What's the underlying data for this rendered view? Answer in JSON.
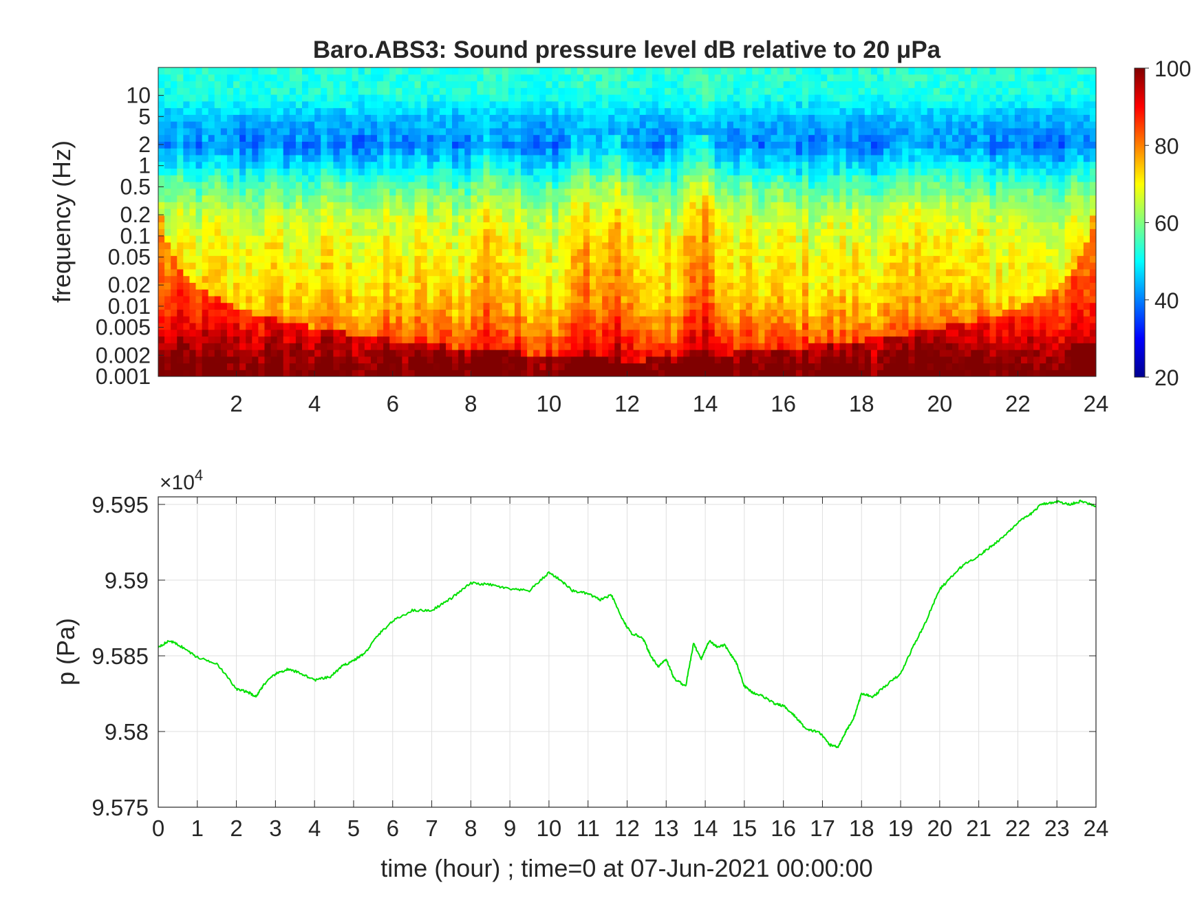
{
  "figure": {
    "title": "Baro.ABS3: Sound pressure level dB relative to 20 μPa"
  },
  "chart_data": [
    {
      "type": "heatmap",
      "title": "Baro.ABS3: Sound pressure level dB relative to 20 μPa",
      "ylabel": "frequency (Hz)",
      "xlabel": "",
      "xlim": [
        0,
        24
      ],
      "ylim": [
        0.001,
        25
      ],
      "yscale": "log",
      "x_ticks": [
        2,
        4,
        6,
        8,
        10,
        12,
        14,
        16,
        18,
        20,
        22,
        24
      ],
      "y_ticks": [
        0.001,
        0.002,
        0.005,
        0.01,
        0.02,
        0.05,
        0.1,
        0.2,
        0.5,
        1,
        2,
        5,
        10
      ],
      "y_tick_labels": [
        "0.001",
        "0.002",
        "0.005",
        "0.01",
        "0.02",
        "0.05",
        "0.1",
        "0.2",
        "0.5",
        "1",
        "2",
        "5",
        "10"
      ],
      "colorbar": {
        "range": [
          20,
          100
        ],
        "ticks": [
          20,
          40,
          60,
          80,
          100
        ],
        "colormap": "jet"
      },
      "level_profile_db": {
        "hours": [
          0,
          1,
          2,
          3,
          4,
          5,
          6,
          7,
          8,
          9,
          10,
          11,
          12,
          13,
          14,
          15,
          16,
          17,
          18,
          19,
          20,
          21,
          22,
          23,
          24
        ],
        "freq_hz": [
          0.001,
          0.002,
          0.005,
          0.01,
          0.02,
          0.05,
          0.1,
          0.2,
          0.5,
          1,
          2,
          5,
          10,
          25
        ],
        "background": [
          92,
          88,
          80,
          75,
          72,
          70,
          68,
          65,
          57,
          48,
          40,
          45,
          52,
          53
        ],
        "event_hours": [
          8.5,
          10.8,
          11.8,
          13.9,
          19.8
        ],
        "event_boost": [
          6,
          8,
          8,
          12,
          5
        ]
      }
    },
    {
      "type": "line",
      "title": "",
      "xlabel": "time (hour) ; time=0 at 07-Jun-2021 00:00:00",
      "ylabel": "p (Pa)",
      "xlim": [
        0,
        24
      ],
      "ylim": [
        95750,
        95955
      ],
      "y_exponent_label": "×10",
      "y_exponent_power": "4",
      "x_ticks": [
        0,
        1,
        2,
        3,
        4,
        5,
        6,
        7,
        8,
        9,
        10,
        11,
        12,
        13,
        14,
        15,
        16,
        17,
        18,
        19,
        20,
        21,
        22,
        23,
        24
      ],
      "y_ticks": [
        95750,
        95800,
        95850,
        95900,
        95950
      ],
      "y_tick_labels": [
        "9.575",
        "9.58",
        "9.585",
        "9.59",
        "9.595"
      ],
      "grid": true,
      "line_color": "#00e000",
      "series": [
        {
          "x": [
            0,
            0.3,
            0.6,
            1.0,
            1.5,
            2.0,
            2.3,
            2.5,
            2.7,
            3.0,
            3.3,
            3.6,
            4.0,
            4.4,
            4.7,
            5.0,
            5.3,
            5.6,
            6.0,
            6.5,
            7.0,
            7.5,
            8.0,
            8.5,
            9.0,
            9.5,
            10.0,
            10.3,
            10.6,
            11.0,
            11.3,
            11.6,
            11.9,
            12.1,
            12.4,
            12.6,
            12.8,
            13.0,
            13.2,
            13.5,
            13.7,
            13.9,
            14.1,
            14.3,
            14.5,
            14.8,
            15.0,
            15.2,
            15.5,
            15.8,
            16.0,
            16.3,
            16.6,
            16.9,
            17.2,
            17.4,
            17.6,
            17.8,
            18.0,
            18.3,
            18.6,
            19.0,
            19.3,
            19.6,
            20.0,
            20.3,
            20.6,
            21.0,
            21.3,
            21.6,
            22.0,
            22.3,
            22.6,
            23.0,
            23.3,
            23.6,
            24.0
          ],
          "y": [
            95856,
            95860,
            95856,
            95849,
            95845,
            95828,
            95826,
            95823,
            95831,
            95838,
            95841,
            95839,
            95834,
            95836,
            95843,
            95847,
            95852,
            95863,
            95873,
            95880,
            95880,
            95888,
            95898,
            95897,
            95894,
            95893,
            95905,
            95900,
            95893,
            95891,
            95887,
            95890,
            95873,
            95865,
            95862,
            95850,
            95843,
            95848,
            95835,
            95830,
            95858,
            95848,
            95860,
            95856,
            95857,
            95845,
            95830,
            95826,
            95823,
            95818,
            95817,
            95810,
            95801,
            95800,
            95791,
            95790,
            95800,
            95809,
            95825,
            95823,
            95830,
            95838,
            95855,
            95870,
            95894,
            95902,
            95910,
            95916,
            95922,
            95928,
            95938,
            95943,
            95950,
            95952,
            95950,
            95952,
            95949
          ]
        }
      ]
    }
  ]
}
